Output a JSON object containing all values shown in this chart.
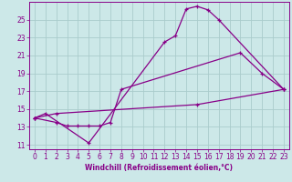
{
  "background_color": "#cce8e8",
  "grid_color": "#aacccc",
  "line_color": "#880088",
  "xlabel": "Windchill (Refroidissement éolien,°C)",
  "xlim": [
    -0.5,
    23.5
  ],
  "ylim": [
    10.5,
    27
  ],
  "yticks": [
    11,
    13,
    15,
    17,
    19,
    21,
    23,
    25
  ],
  "xticks": [
    0,
    1,
    2,
    3,
    4,
    5,
    6,
    7,
    8,
    9,
    10,
    11,
    12,
    13,
    14,
    15,
    16,
    17,
    18,
    19,
    20,
    21,
    22,
    23
  ],
  "lines": [
    {
      "x": [
        0,
        1,
        5,
        12,
        13,
        14,
        15,
        16,
        17,
        23
      ],
      "y": [
        14,
        14.5,
        11.2,
        22.5,
        23.2,
        26.2,
        26.5,
        26.1,
        25.0,
        17.2
      ]
    },
    {
      "x": [
        0,
        2,
        3,
        4,
        5,
        6,
        7,
        8,
        19,
        21,
        23
      ],
      "y": [
        14,
        13.5,
        13.1,
        13.1,
        13.1,
        13.1,
        13.5,
        17.2,
        21.3,
        19.0,
        17.2
      ]
    },
    {
      "x": [
        0,
        2,
        15,
        23
      ],
      "y": [
        14,
        14.5,
        15.5,
        17.2
      ]
    }
  ],
  "tick_fontsize": 5.5,
  "xlabel_fontsize": 5.5
}
